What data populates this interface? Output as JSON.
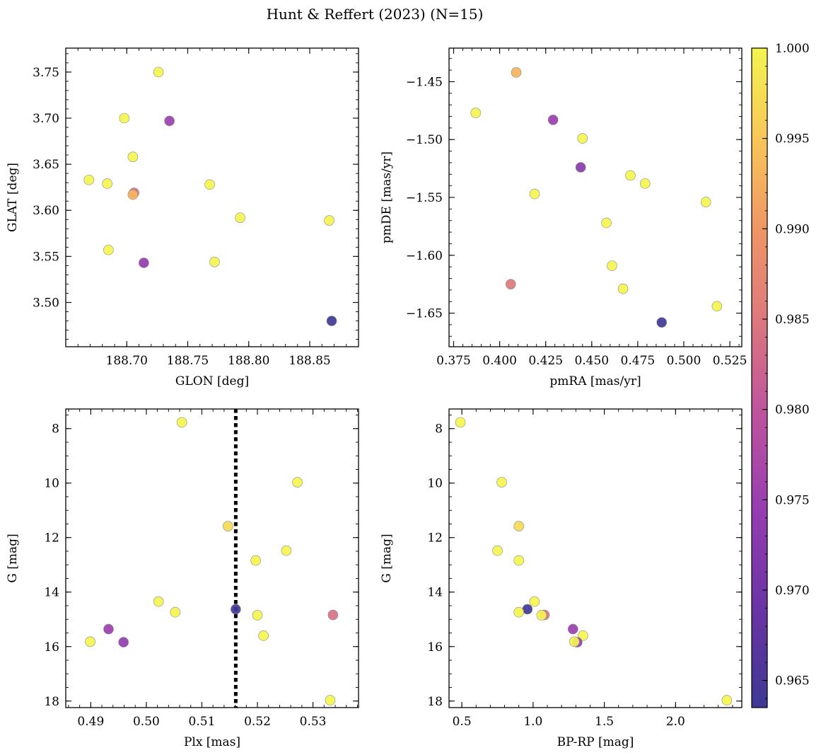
{
  "figure": {
    "title": "Hunt & Reffert (2023) (N=15)"
  },
  "colorbar": {
    "min": 0.9635,
    "max": 1.0,
    "ticks": [
      0.965,
      0.97,
      0.975,
      0.98,
      0.985,
      0.99,
      0.995,
      1.0
    ],
    "tick_labels": [
      "0.965",
      "0.970",
      "0.975",
      "0.980",
      "0.985",
      "0.990",
      "0.995",
      "1.000"
    ],
    "colormap": "plasma"
  },
  "chart_data": [
    {
      "id": "glon-glat",
      "type": "scatter",
      "xlabel": "GLON [deg]",
      "ylabel": "GLAT [deg]",
      "xlim": [
        188.65,
        188.89
      ],
      "ylim": [
        3.452,
        3.776
      ],
      "invert_y": false,
      "xticks": [
        188.7,
        188.75,
        188.8,
        188.85
      ],
      "xtick_labels": [
        "188.70",
        "188.75",
        "188.80",
        "188.85"
      ],
      "xminor": 0.01,
      "yticks": [
        3.5,
        3.55,
        3.6,
        3.65,
        3.7,
        3.75
      ],
      "ytick_labels": [
        "3.50",
        "3.55",
        "3.60",
        "3.65",
        "3.70",
        "3.75"
      ],
      "yminor": 0.01,
      "points": [
        {
          "x": 188.726,
          "y": 3.75,
          "c": 1.0
        },
        {
          "x": 188.698,
          "y": 3.7,
          "c": 1.0
        },
        {
          "x": 188.735,
          "y": 3.697,
          "c": 0.975
        },
        {
          "x": 188.705,
          "y": 3.658,
          "c": 1.0
        },
        {
          "x": 188.669,
          "y": 3.633,
          "c": 1.0
        },
        {
          "x": 188.684,
          "y": 3.629,
          "c": 1.0
        },
        {
          "x": 188.768,
          "y": 3.628,
          "c": 1.0
        },
        {
          "x": 188.706,
          "y": 3.619,
          "c": 0.984
        },
        {
          "x": 188.705,
          "y": 3.617,
          "c": 0.993
        },
        {
          "x": 188.793,
          "y": 3.592,
          "c": 1.0
        },
        {
          "x": 188.866,
          "y": 3.589,
          "c": 1.0
        },
        {
          "x": 188.685,
          "y": 3.557,
          "c": 1.0
        },
        {
          "x": 188.714,
          "y": 3.543,
          "c": 0.974
        },
        {
          "x": 188.772,
          "y": 3.544,
          "c": 1.0
        },
        {
          "x": 188.868,
          "y": 3.48,
          "c": 0.9637
        }
      ]
    },
    {
      "id": "pmra-pmde",
      "type": "scatter",
      "xlabel": "pmRA [mas/yr]",
      "ylabel": "pmDE [mas/yr]",
      "xlim": [
        0.3725,
        0.5315
      ],
      "ylim": [
        -1.679,
        -1.421
      ],
      "invert_y": false,
      "xticks": [
        0.375,
        0.4,
        0.425,
        0.45,
        0.475,
        0.5,
        0.525
      ],
      "xtick_labels": [
        "0.375",
        "0.400",
        "0.425",
        "0.450",
        "0.475",
        "0.500",
        "0.525"
      ],
      "xminor": 0.005,
      "yticks": [
        -1.65,
        -1.6,
        -1.55,
        -1.5,
        -1.45
      ],
      "ytick_labels": [
        "−1.65",
        "−1.60",
        "−1.55",
        "−1.50",
        "−1.45"
      ],
      "yminor": 0.01,
      "points": [
        {
          "x": 0.409,
          "y": -1.442,
          "c": 0.993
        },
        {
          "x": 0.387,
          "y": -1.477,
          "c": 1.0
        },
        {
          "x": 0.429,
          "y": -1.483,
          "c": 0.975
        },
        {
          "x": 0.445,
          "y": -1.499,
          "c": 1.0
        },
        {
          "x": 0.444,
          "y": -1.524,
          "c": 0.973
        },
        {
          "x": 0.471,
          "y": -1.531,
          "c": 1.0
        },
        {
          "x": 0.479,
          "y": -1.538,
          "c": 1.0
        },
        {
          "x": 0.419,
          "y": -1.547,
          "c": 1.0
        },
        {
          "x": 0.512,
          "y": -1.554,
          "c": 1.0
        },
        {
          "x": 0.458,
          "y": -1.572,
          "c": 1.0
        },
        {
          "x": 0.461,
          "y": -1.609,
          "c": 1.0
        },
        {
          "x": 0.406,
          "y": -1.625,
          "c": 0.985
        },
        {
          "x": 0.467,
          "y": -1.629,
          "c": 1.0
        },
        {
          "x": 0.518,
          "y": -1.644,
          "c": 1.0
        },
        {
          "x": 0.488,
          "y": -1.658,
          "c": 0.9637
        }
      ]
    },
    {
      "id": "plx-g",
      "type": "scatter",
      "xlabel": "Plx [mas]",
      "ylabel": "G [mag]",
      "xlim": [
        0.4855,
        0.5382
      ],
      "ylim": [
        18.24,
        7.28
      ],
      "invert_y": true,
      "xticks": [
        0.49,
        0.5,
        0.51,
        0.52,
        0.53
      ],
      "xtick_labels": [
        "0.49",
        "0.50",
        "0.51",
        "0.52",
        "0.53"
      ],
      "xminor": 0.002,
      "yticks": [
        8,
        10,
        12,
        14,
        16,
        18
      ],
      "ytick_labels": [
        "8",
        "10",
        "12",
        "14",
        "16",
        "18"
      ],
      "yminor": 0.5,
      "vline": 0.5161,
      "points": [
        {
          "x": 0.5064,
          "y": 7.77,
          "c": 1.0
        },
        {
          "x": 0.5272,
          "y": 9.97,
          "c": 1.0
        },
        {
          "x": 0.5147,
          "y": 11.58,
          "c": 0.997
        },
        {
          "x": 0.5252,
          "y": 12.48,
          "c": 1.0
        },
        {
          "x": 0.5197,
          "y": 12.84,
          "c": 1.0
        },
        {
          "x": 0.5022,
          "y": 14.35,
          "c": 1.0
        },
        {
          "x": 0.5161,
          "y": 14.63,
          "c": 0.9637
        },
        {
          "x": 0.5052,
          "y": 14.74,
          "c": 1.0
        },
        {
          "x": 0.52,
          "y": 14.85,
          "c": 1.0
        },
        {
          "x": 0.5336,
          "y": 14.84,
          "c": 0.984
        },
        {
          "x": 0.4932,
          "y": 15.36,
          "c": 0.975
        },
        {
          "x": 0.5211,
          "y": 15.6,
          "c": 1.0
        },
        {
          "x": 0.4899,
          "y": 15.82,
          "c": 1.0
        },
        {
          "x": 0.4959,
          "y": 15.84,
          "c": 0.974
        },
        {
          "x": 0.5331,
          "y": 17.97,
          "c": 1.0
        }
      ]
    },
    {
      "id": "bprp-g",
      "type": "scatter",
      "xlabel": "BP-RP [mag]",
      "ylabel": "G [mag]",
      "xlim": [
        0.41,
        2.465
      ],
      "ylim": [
        18.24,
        7.28
      ],
      "invert_y": true,
      "xticks": [
        0.5,
        1.0,
        1.5,
        2.0
      ],
      "xtick_labels": [
        "0.5",
        "1.0",
        "1.5",
        "2.0"
      ],
      "xminor": 0.1,
      "yticks": [
        8,
        10,
        12,
        14,
        16,
        18
      ],
      "ytick_labels": [
        "8",
        "10",
        "12",
        "14",
        "16",
        "18"
      ],
      "yminor": 0.5,
      "points": [
        {
          "x": 0.49,
          "y": 7.77,
          "c": 1.0
        },
        {
          "x": 0.78,
          "y": 9.97,
          "c": 1.0
        },
        {
          "x": 0.9,
          "y": 11.58,
          "c": 0.997
        },
        {
          "x": 0.75,
          "y": 12.48,
          "c": 1.0
        },
        {
          "x": 0.9,
          "y": 12.84,
          "c": 1.0
        },
        {
          "x": 1.01,
          "y": 14.35,
          "c": 1.0
        },
        {
          "x": 0.96,
          "y": 14.63,
          "c": 0.9637
        },
        {
          "x": 0.9,
          "y": 14.74,
          "c": 1.0
        },
        {
          "x": 1.08,
          "y": 14.84,
          "c": 0.984
        },
        {
          "x": 1.06,
          "y": 14.85,
          "c": 1.0
        },
        {
          "x": 1.28,
          "y": 15.36,
          "c": 0.975
        },
        {
          "x": 1.35,
          "y": 15.6,
          "c": 1.0
        },
        {
          "x": 1.31,
          "y": 15.84,
          "c": 0.974
        },
        {
          "x": 1.29,
          "y": 15.82,
          "c": 1.0
        },
        {
          "x": 2.36,
          "y": 17.97,
          "c": 1.0
        }
      ]
    }
  ]
}
